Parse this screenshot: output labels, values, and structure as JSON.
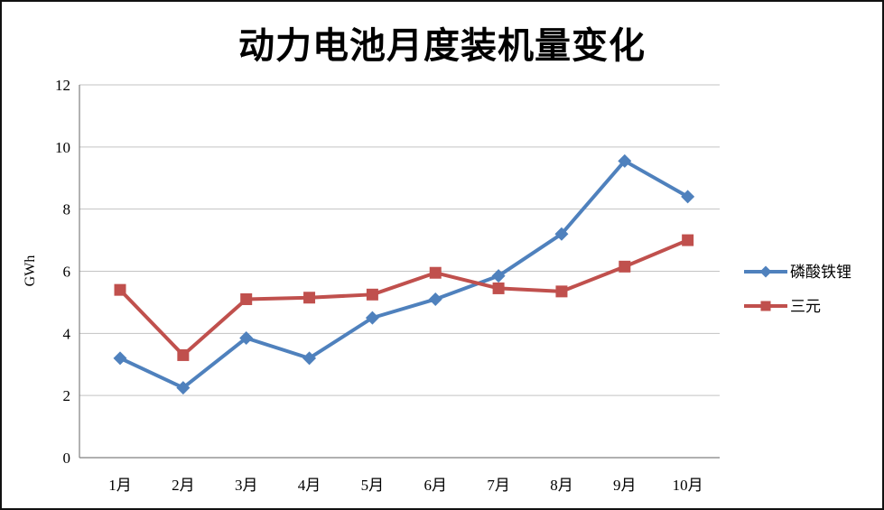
{
  "window": {
    "background": "#ffffff",
    "border_color": "#111111"
  },
  "chart_data": {
    "type": "line",
    "title": "动力电池月度装机量变化",
    "xlabel": "",
    "ylabel": "GWh",
    "categories": [
      "1月",
      "2月",
      "3月",
      "4月",
      "5月",
      "6月",
      "7月",
      "8月",
      "9月",
      "10月"
    ],
    "series": [
      {
        "name": "磷酸铁锂",
        "color": "#4F81BD",
        "marker": "diamond",
        "values": [
          3.2,
          2.25,
          3.85,
          3.2,
          4.5,
          5.1,
          5.85,
          7.2,
          9.55,
          8.4
        ]
      },
      {
        "name": "三元",
        "color": "#C0504D",
        "marker": "square",
        "values": [
          5.4,
          3.3,
          5.1,
          5.15,
          5.25,
          5.95,
          5.45,
          5.35,
          6.15,
          7.0
        ]
      }
    ],
    "ylim": [
      0,
      12
    ],
    "yticks": [
      0,
      2,
      4,
      6,
      8,
      10,
      12
    ],
    "grid": true,
    "legend_position": "right",
    "gridline_color": "#C3C3C3",
    "axis_color": "#808080",
    "text_color": "#000000"
  }
}
